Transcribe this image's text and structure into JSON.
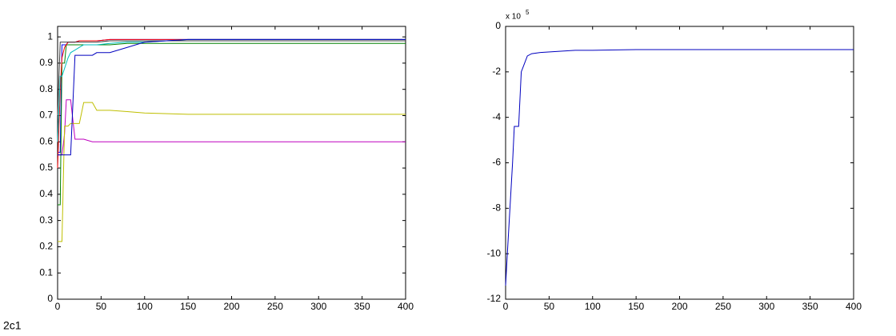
{
  "figure_label": "2c1",
  "chart_data": [
    {
      "type": "line",
      "x": [
        0,
        3,
        5,
        8,
        10,
        12,
        15,
        20,
        25,
        30,
        40,
        45,
        60,
        80,
        100,
        150,
        200,
        300,
        400
      ],
      "series": [
        {
          "color": "#0000ff",
          "values": [
            0.56,
            0.56,
            0.97,
            0.97,
            0.97,
            0.98,
            0.98,
            0.98,
            0.985,
            0.985,
            0.985,
            0.985,
            0.99,
            0.99,
            0.99,
            0.99,
            0.99,
            0.99,
            0.99
          ]
        },
        {
          "color": "#008000",
          "values": [
            0.36,
            0.36,
            0.9,
            0.9,
            0.97,
            0.97,
            0.97,
            0.97,
            0.97,
            0.97,
            0.97,
            0.97,
            0.97,
            0.975,
            0.975,
            0.975,
            0.975,
            0.975,
            0.975
          ]
        },
        {
          "color": "#ff0000",
          "values": [
            0.5,
            0.8,
            0.92,
            0.96,
            0.97,
            0.98,
            0.98,
            0.98,
            0.985,
            0.985,
            0.985,
            0.985,
            0.99,
            0.99,
            0.99,
            0.99,
            0.99,
            0.99,
            0.99
          ]
        },
        {
          "color": "#00bfbf",
          "values": [
            0.6,
            0.85,
            0.85,
            0.88,
            0.9,
            0.92,
            0.94,
            0.95,
            0.96,
            0.97,
            0.97,
            0.97,
            0.975,
            0.98,
            0.98,
            0.99,
            0.99,
            0.99,
            0.99
          ]
        },
        {
          "color": "#bf00bf",
          "values": [
            0.55,
            0.55,
            0.55,
            0.63,
            0.76,
            0.76,
            0.76,
            0.61,
            0.61,
            0.61,
            0.6,
            0.6,
            0.6,
            0.6,
            0.6,
            0.6,
            0.6,
            0.6,
            0.6
          ]
        },
        {
          "color": "#bfbf00",
          "values": [
            0.22,
            0.22,
            0.22,
            0.66,
            0.66,
            0.66,
            0.67,
            0.67,
            0.67,
            0.75,
            0.75,
            0.72,
            0.72,
            0.715,
            0.71,
            0.705,
            0.705,
            0.705,
            0.705
          ]
        },
        {
          "color": "#404040",
          "values": [
            0.7,
            0.98,
            0.98,
            0.98,
            0.98,
            0.98,
            0.98,
            0.98,
            0.98,
            0.98,
            0.98,
            0.98,
            0.985,
            0.985,
            0.985,
            0.985,
            0.985,
            0.985,
            0.985
          ]
        },
        {
          "color": "#0000bf",
          "values": [
            0.55,
            0.55,
            0.55,
            0.55,
            0.55,
            0.55,
            0.55,
            0.93,
            0.93,
            0.93,
            0.93,
            0.94,
            0.94,
            0.96,
            0.98,
            0.99,
            0.99,
            0.99,
            0.99
          ]
        }
      ],
      "xlim": [
        0,
        400
      ],
      "xticks": [
        0,
        50,
        100,
        150,
        200,
        250,
        300,
        350,
        400
      ],
      "ylim": [
        0,
        1.04
      ],
      "yticks": [
        0,
        0.1,
        0.2,
        0.3,
        0.4,
        0.5,
        0.6,
        0.7,
        0.8,
        0.9,
        1
      ],
      "grid": false
    },
    {
      "type": "line",
      "x": [
        0,
        2,
        5,
        8,
        10,
        12,
        15,
        18,
        20,
        25,
        30,
        40,
        60,
        80,
        100,
        150,
        200,
        300,
        400
      ],
      "series": [
        {
          "color": "#0000bf",
          "values": [
            -11.4,
            -10,
            -8,
            -6,
            -4.4,
            -4.4,
            -4.4,
            -2,
            -1.8,
            -1.3,
            -1.2,
            -1.15,
            -1.1,
            -1.05,
            -1.05,
            -1.02,
            -1.02,
            -1.02,
            -1.02
          ]
        }
      ],
      "axis_multiplier": {
        "base": "x 10",
        "exponent": 5
      },
      "xlim": [
        0,
        400
      ],
      "xticks": [
        0,
        50,
        100,
        150,
        200,
        250,
        300,
        350,
        400
      ],
      "ylim": [
        -12,
        0
      ],
      "yticks": [
        -12,
        -10,
        -8,
        -6,
        -4,
        -2,
        0
      ],
      "grid": false
    }
  ]
}
